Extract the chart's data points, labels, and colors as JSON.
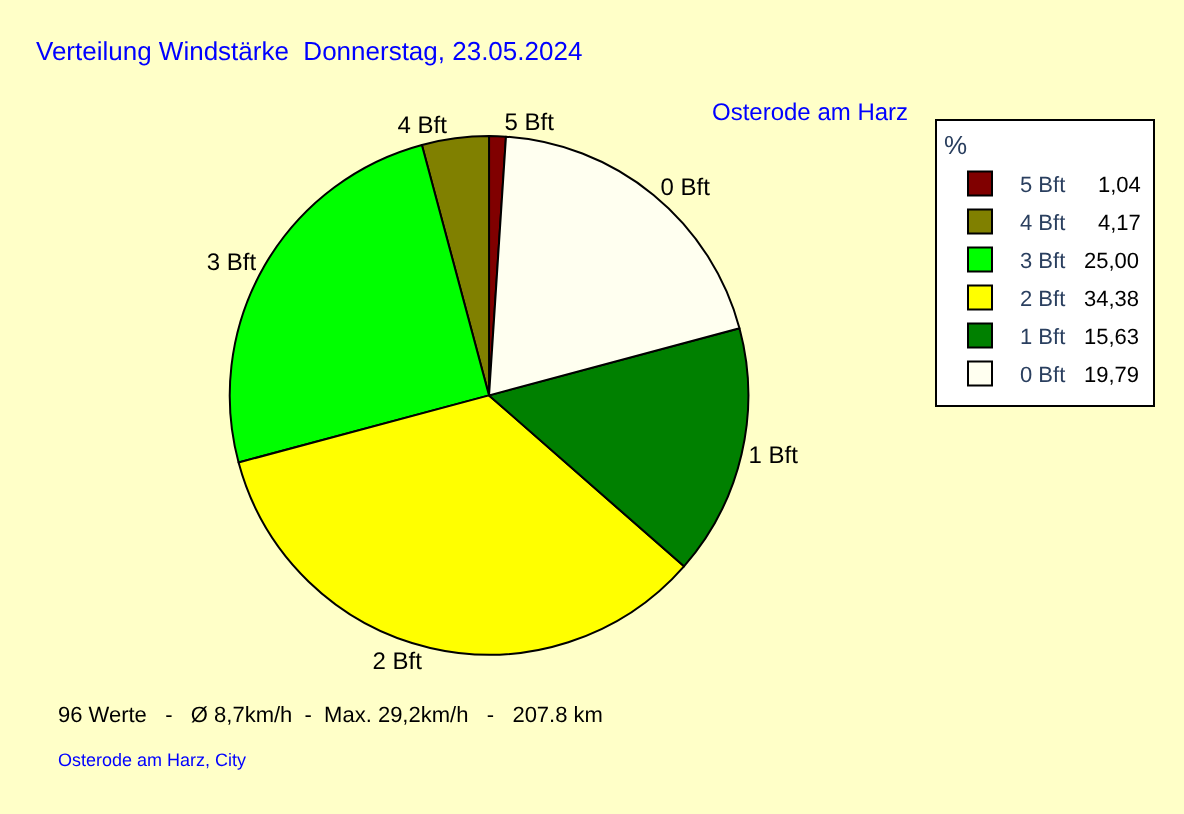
{
  "chart_data": {
    "type": "pie",
    "title": "Verteilung Windstärke  Donnerstag, 23.05.2024",
    "subtitle": "Osterode am Harz",
    "categories": [
      "5 Bft",
      "4 Bft",
      "3 Bft",
      "2 Bft",
      "1 Bft",
      "0 Bft"
    ],
    "values": [
      1.04,
      4.17,
      25.0,
      34.38,
      15.63,
      19.79
    ],
    "value_labels": [
      "1,04",
      "4,17",
      "25,00",
      "34,38",
      "15,63",
      "19,79"
    ],
    "colors": [
      "#800000",
      "#808000",
      "#00ff00",
      "#ffff00",
      "#008000",
      "#fffff0"
    ],
    "legend": "top right",
    "legend_title": "%",
    "annotations": [
      "96 Werte   -   Ø 8,7km/h  -  Max. 29,2km/h   -   207.8 km",
      "Osterode am Harz, City"
    ]
  }
}
